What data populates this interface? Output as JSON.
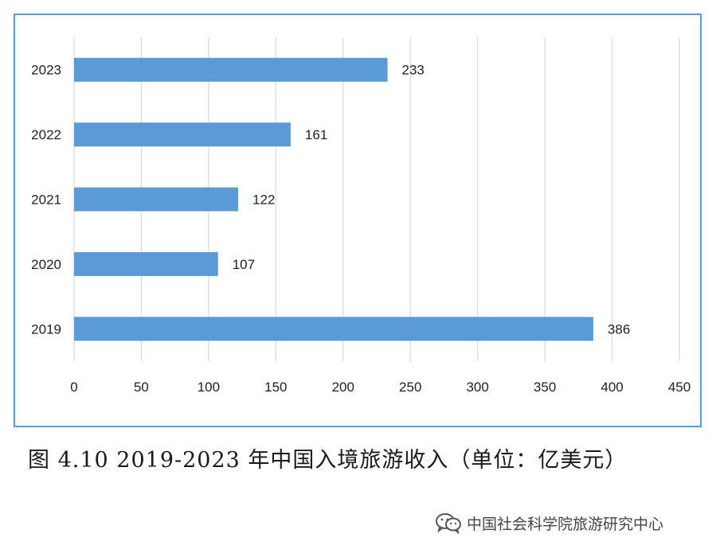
{
  "chart_data": {
    "type": "bar",
    "orientation": "horizontal",
    "categories": [
      "2023",
      "2022",
      "2021",
      "2020",
      "2019"
    ],
    "values": [
      233,
      161,
      122,
      107,
      386
    ],
    "xlim": [
      0,
      450
    ],
    "xticks": [
      0,
      50,
      100,
      150,
      200,
      250,
      300,
      350,
      400,
      450
    ],
    "grid": true,
    "bar_color": "#5b9bd5",
    "grid_color": "#d9d9d9",
    "data_labels": true
  },
  "caption": "图 4.10 2019-2023 年中国入境旅游收入（单位：亿美元）",
  "watermark": {
    "icon": "wechat-icon",
    "text": "中国社会科学院旅游研究中心"
  },
  "colors": {
    "frame_border": "#5b9bd5"
  }
}
